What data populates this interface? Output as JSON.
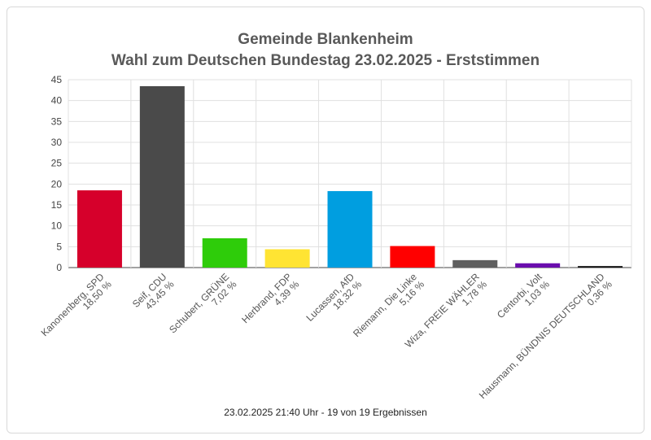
{
  "chart_data": {
    "type": "bar",
    "title_lines": [
      "Gemeinde Blankenheim",
      "Wahl zum Deutschen Bundestag 23.02.2025  - Erststimmen"
    ],
    "categories": [
      [
        "Kanonenberg, SPD",
        "18,50 %"
      ],
      [
        "Seif, CDU",
        "43,45 %"
      ],
      [
        "Schubert, GRÜNE",
        "7,02 %"
      ],
      [
        "Herbrand, FDP",
        "4,39 %"
      ],
      [
        "Lucassen, AfD",
        "18,32 %"
      ],
      [
        "Riemann, Die Linke",
        "5,16 %"
      ],
      [
        "Wiza, FREIE WÄHLER",
        "1,78 %"
      ],
      [
        "Centorbi, Volt",
        "1,03 %"
      ],
      [
        "Hausmann, BÜNDNIS DEUTSCHLAND",
        "0,36 %"
      ]
    ],
    "values": [
      18.5,
      43.45,
      7.02,
      4.39,
      18.32,
      5.16,
      1.78,
      1.03,
      0.36
    ],
    "colors": [
      "#d6002b",
      "#4a4a4a",
      "#2ecc0a",
      "#ffe433",
      "#009ee0",
      "#ff0000",
      "#5f5f5f",
      "#6a0dad",
      "#111111"
    ],
    "y_ticks": [
      0,
      5,
      10,
      15,
      20,
      25,
      30,
      35,
      40,
      45
    ],
    "ylim": [
      0,
      45
    ],
    "grid": true,
    "footer": "23.02.2025 21:40 Uhr - 19 von 19 Ergebnissen"
  }
}
